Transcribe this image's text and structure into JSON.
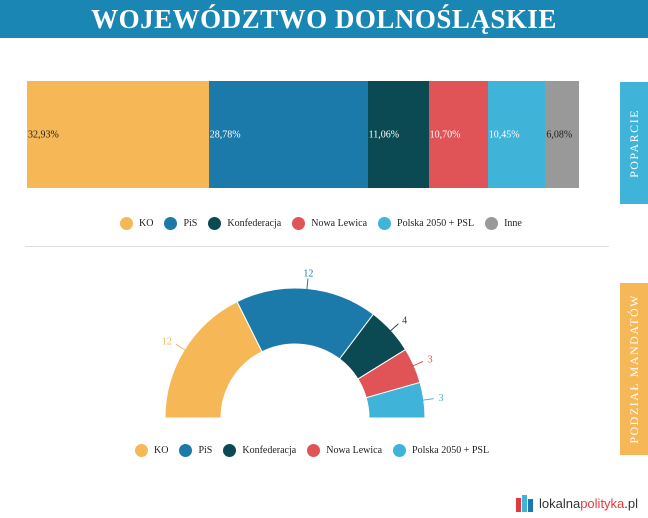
{
  "header": {
    "title": "WOJEWÓDZTWO DOLNOŚLĄSKIE"
  },
  "side_tabs": {
    "support": "POPARCIE",
    "seats": "PODZIAŁ MANDATÓW"
  },
  "colors": {
    "header_bg": "#1a86b4",
    "ko": "#f6b757",
    "pis": "#1c7aaa",
    "konfederacja": "#0b4a52",
    "nowa_lewica": "#e05356",
    "polska2050": "#3fb3d8",
    "inne": "#999999"
  },
  "chart_data": [
    {
      "type": "bar",
      "orientation": "horizontal-stacked",
      "categories": [
        "KO",
        "PiS",
        "Konfederacja",
        "Nowa Lewica",
        "Polska 2050 + PSL",
        "Inne"
      ],
      "values": [
        32.93,
        28.78,
        11.06,
        10.7,
        10.45,
        6.08
      ],
      "data_labels": [
        "32,93%",
        "28,78%",
        "11,06%",
        "10,70%",
        "10,45%",
        "6,08%"
      ],
      "colors": [
        "#f6b757",
        "#1c7aaa",
        "#0b4a52",
        "#e05356",
        "#3fb3d8",
        "#999999"
      ],
      "label_colors": [
        "#222222",
        "#ffffff",
        "#ffffff",
        "#ffffff",
        "#ffffff",
        "#222222"
      ],
      "legend": [
        "KO",
        "PiS",
        "Konfederacja",
        "Nowa Lewica",
        "Polska 2050 + PSL",
        "Inne"
      ],
      "legend_position": "bottom"
    },
    {
      "type": "pie",
      "variant": "semi-donut",
      "categories": [
        "KO",
        "PiS",
        "Konfederacja",
        "Nowa Lewica",
        "Polska 2050 + PSL"
      ],
      "values": [
        12,
        12,
        4,
        3,
        3
      ],
      "data_labels": [
        "12",
        "12",
        "4",
        "3",
        "3"
      ],
      "colors": [
        "#f6b757",
        "#1c7aaa",
        "#0b4a52",
        "#e05356",
        "#3fb3d8"
      ],
      "legend": [
        "KO",
        "PiS",
        "Konfederacja",
        "Nowa Lewica",
        "Polska 2050 + PSL"
      ],
      "legend_position": "bottom"
    }
  ],
  "brand": {
    "part1": "lokalna",
    "part2": "polityka",
    "part3": ".pl"
  }
}
